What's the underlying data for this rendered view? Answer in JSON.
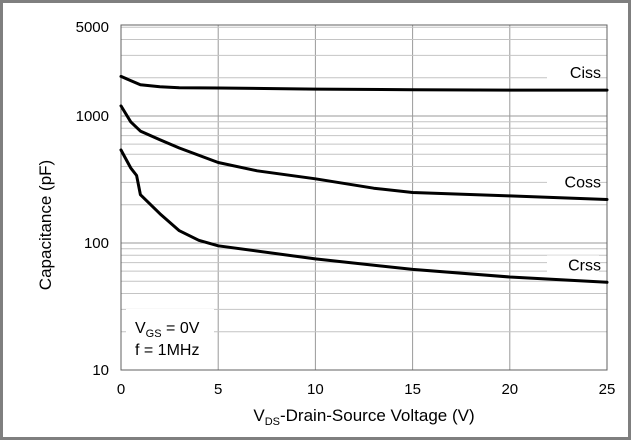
{
  "chart_data": {
    "type": "line",
    "title": "",
    "xlabel": {
      "main": "V",
      "sub": "DS",
      "rest": "-Drain-Source Voltage (V)"
    },
    "ylabel": "Capacitance (pF)",
    "xlim": [
      0,
      25
    ],
    "ylim": [
      10,
      5000
    ],
    "yscale": "log",
    "xticks": [
      "0",
      "5",
      "10",
      "15",
      "20",
      "25"
    ],
    "yticks": [
      "10",
      "100",
      "1000",
      "5000"
    ],
    "grid": true,
    "series": [
      {
        "name": "Ciss",
        "x": [
          0,
          0.5,
          1,
          2,
          3,
          5,
          10,
          15,
          20,
          25
        ],
        "values": [
          2050,
          1900,
          1760,
          1700,
          1670,
          1660,
          1630,
          1610,
          1600,
          1600
        ]
      },
      {
        "name": "Coss",
        "x": [
          0,
          0.5,
          1,
          2,
          3,
          5,
          7,
          10,
          13,
          15,
          20,
          25
        ],
        "values": [
          1200,
          900,
          760,
          650,
          560,
          430,
          370,
          320,
          270,
          250,
          235,
          220
        ]
      },
      {
        "name": "Crss",
        "x": [
          0,
          0.5,
          0.8,
          1,
          2,
          3,
          4,
          5,
          10,
          15,
          20,
          25
        ],
        "values": [
          540,
          390,
          340,
          240,
          170,
          125,
          105,
          95,
          75,
          62,
          54,
          49
        ]
      }
    ],
    "annotation": {
      "line1_main": "V",
      "line1_sub": "GS",
      "line1_rest": " = 0V",
      "line2": "f = 1MHz"
    }
  }
}
